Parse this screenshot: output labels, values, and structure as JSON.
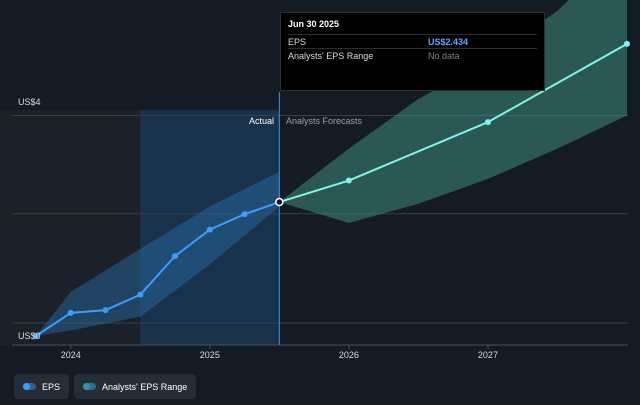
{
  "colors": {
    "background": "#151b24",
    "eps_line": "#3d9dff",
    "forecast_line": "#7ff5ee",
    "actual_band": "#2a6ea8",
    "forecast_band": "#3f8a7c",
    "grid": "#3a3f46"
  },
  "tooltip": {
    "date": "Jun 30 2025",
    "rows": [
      {
        "key": "EPS",
        "value": "US$2.434"
      },
      {
        "key": "Analysts' EPS Range",
        "value": "No data"
      }
    ]
  },
  "legend": [
    {
      "label": "EPS",
      "icon": "eps-line-icon"
    },
    {
      "label": "Analysts' EPS Range",
      "icon": "eps-range-icon"
    }
  ],
  "chart_data": {
    "type": "line",
    "title": "",
    "xlabel": "",
    "ylabel": "",
    "y_tick_labels": {
      "top": "US$4",
      "bottom": "US$0"
    },
    "x_tick_labels": [
      "2024",
      "2025",
      "2026",
      "2027"
    ],
    "region_labels": {
      "actual": "Actual",
      "forecast": "Analysts Forecasts"
    },
    "ylim": [
      0,
      4.1
    ],
    "xlim": [
      2023.75,
      2028.0
    ],
    "highlight_start": 2024.5,
    "divider": 2025.5,
    "series": [
      {
        "name": "EPS",
        "style": "actual",
        "x": [
          2023.75,
          2024.0,
          2024.25,
          2024.5,
          2024.75,
          2025.0,
          2025.25,
          2025.5
        ],
        "y": [
          0.0,
          0.42,
          0.47,
          0.75,
          1.45,
          1.93,
          2.21,
          2.43
        ]
      },
      {
        "name": "EPS forecast",
        "style": "forecast",
        "x": [
          2025.5,
          2026.0,
          2027.0,
          2028.0
        ],
        "y": [
          2.43,
          2.82,
          3.88,
          5.3
        ]
      }
    ],
    "range_bands": [
      {
        "style": "actual",
        "x": [
          2023.75,
          2024.0,
          2024.5,
          2025.0,
          2025.5
        ],
        "low": [
          0.0,
          0.1,
          0.35,
          1.3,
          2.35
        ],
        "high": [
          0.0,
          0.8,
          1.58,
          2.35,
          2.98
        ]
      },
      {
        "style": "forecast",
        "x": [
          2025.5,
          2026.0,
          2026.5,
          2027.0,
          2027.5,
          2028.0
        ],
        "low": [
          2.43,
          2.05,
          2.4,
          2.85,
          3.4,
          4.0
        ],
        "high": [
          2.43,
          3.4,
          4.3,
          5.0,
          5.9,
          7.1
        ]
      }
    ],
    "grid": true
  }
}
